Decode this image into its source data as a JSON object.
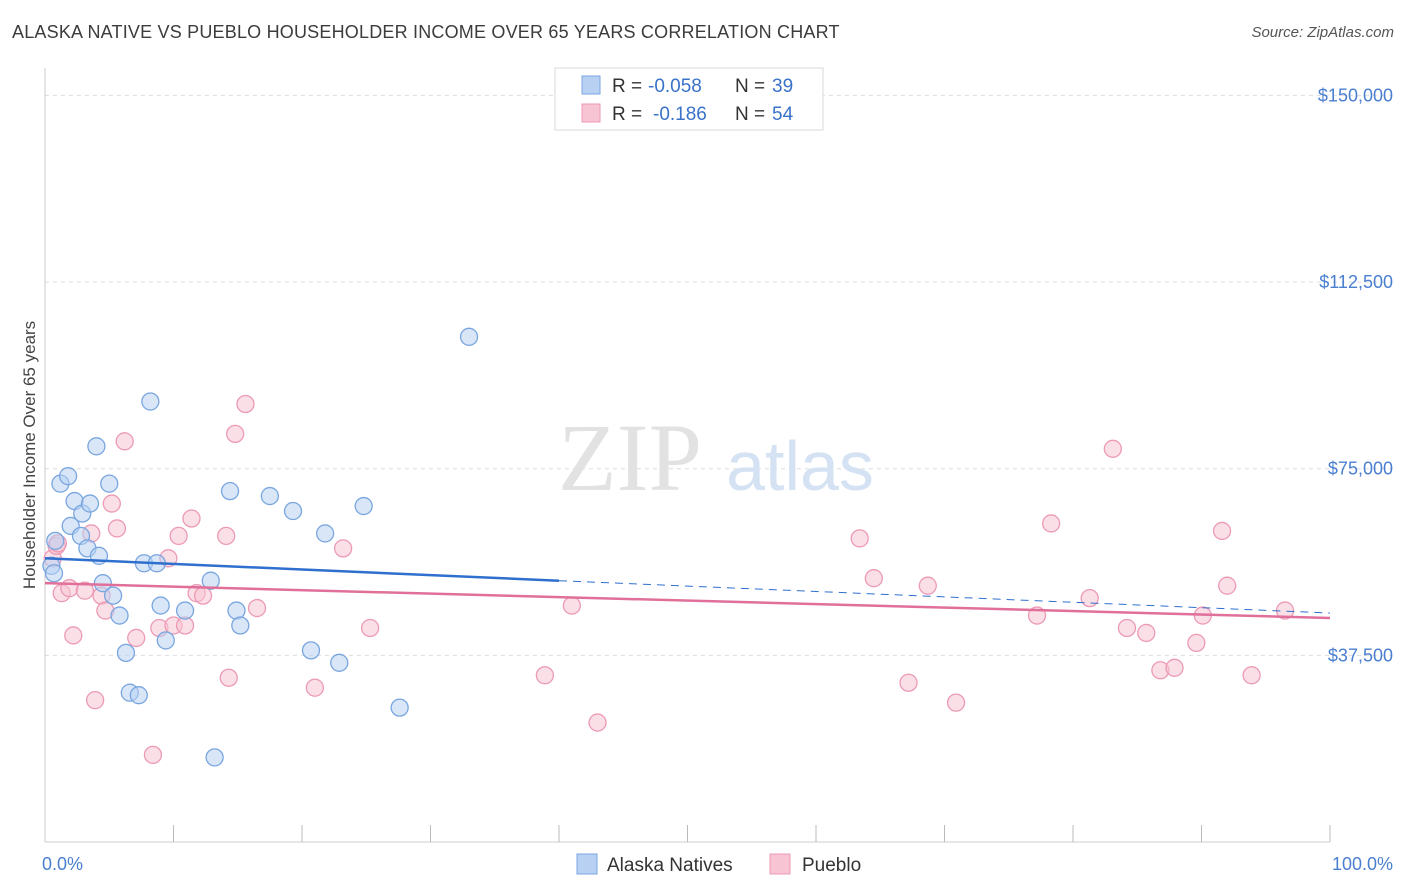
{
  "header": {
    "title": "ALASKA NATIVE VS PUEBLO HOUSEHOLDER INCOME OVER 65 YEARS CORRELATION CHART",
    "source": "Source: ZipAtlas.com"
  },
  "watermark": {
    "part1": "ZIP",
    "part2": "atlas"
  },
  "colors": {
    "alaska_fill": "#b8d1f3",
    "alaska_stroke": "#7aa6e0",
    "alaska_line": "#2f6fce",
    "pueblo_fill": "#f7c4d4",
    "pueblo_stroke": "#ec9ab5",
    "pueblo_line": "#e0709a",
    "grid": "#dddddd",
    "tick_text": "#4a7fd0"
  },
  "legend": {
    "rows": [
      {
        "r_label": "R =",
        "r_value": "-0.058",
        "n_label": "N =",
        "n_value": "39"
      },
      {
        "r_label": "R =",
        "r_value": "-0.186",
        "n_label": "N =",
        "n_value": "54"
      }
    ]
  },
  "chart_data": {
    "type": "scatter",
    "title": "ALASKA NATIVE VS PUEBLO HOUSEHOLDER INCOME OVER 65 YEARS CORRELATION CHART",
    "xlabel": "",
    "ylabel": "Householder Income Over 65 years",
    "xlim": [
      0,
      100
    ],
    "ylim": [
      0,
      150000
    ],
    "x_tick_labels": [
      "0.0%",
      "100.0%"
    ],
    "y_ticks": [
      37500,
      75000,
      112500,
      150000
    ],
    "y_tick_labels": [
      "$37,500",
      "$75,000",
      "$112,500",
      "$150,000"
    ],
    "grid": true,
    "legend_position": "top-center",
    "series": [
      {
        "name": "Alaska Natives",
        "r": -0.058,
        "n": 39,
        "trend": {
          "x0": 0,
          "y0": 57000,
          "x1": 40,
          "y1": 52500,
          "dash_to_x": 100,
          "dash_to_y": 46000
        },
        "points": [
          [
            0.5,
            55500
          ],
          [
            0.7,
            54000
          ],
          [
            0.8,
            60500
          ],
          [
            1.2,
            72000
          ],
          [
            1.8,
            73500
          ],
          [
            2.0,
            63500
          ],
          [
            2.3,
            68500
          ],
          [
            2.8,
            61500
          ],
          [
            2.9,
            66000
          ],
          [
            3.3,
            59000
          ],
          [
            3.5,
            68000
          ],
          [
            4.0,
            79500
          ],
          [
            4.2,
            57500
          ],
          [
            4.5,
            52000
          ],
          [
            5.0,
            72000
          ],
          [
            5.3,
            49500
          ],
          [
            5.8,
            45500
          ],
          [
            6.3,
            38000
          ],
          [
            6.6,
            30000
          ],
          [
            7.3,
            29500
          ],
          [
            7.7,
            56000
          ],
          [
            8.2,
            88500
          ],
          [
            8.7,
            56000
          ],
          [
            9.0,
            47500
          ],
          [
            9.4,
            40500
          ],
          [
            10.9,
            46500
          ],
          [
            12.9,
            52500
          ],
          [
            13.2,
            17000
          ],
          [
            14.4,
            70500
          ],
          [
            14.9,
            46500
          ],
          [
            15.2,
            43500
          ],
          [
            17.5,
            69500
          ],
          [
            19.3,
            66500
          ],
          [
            20.7,
            38500
          ],
          [
            21.8,
            62000
          ],
          [
            22.9,
            36000
          ],
          [
            24.8,
            67500
          ],
          [
            27.6,
            27000
          ],
          [
            33.0,
            101500
          ]
        ]
      },
      {
        "name": "Pueblo",
        "r": -0.186,
        "n": 54,
        "trend": {
          "x0": 0,
          "y0": 52000,
          "x1": 100,
          "y1": 45000
        },
        "points": [
          [
            0.6,
            57000
          ],
          [
            0.9,
            59500
          ],
          [
            1.0,
            60000
          ],
          [
            1.3,
            50000
          ],
          [
            1.9,
            51000
          ],
          [
            2.2,
            41500
          ],
          [
            3.1,
            50500
          ],
          [
            3.6,
            62000
          ],
          [
            3.9,
            28500
          ],
          [
            4.4,
            49500
          ],
          [
            4.7,
            46500
          ],
          [
            5.2,
            68000
          ],
          [
            5.6,
            63000
          ],
          [
            6.2,
            80500
          ],
          [
            7.1,
            41000
          ],
          [
            8.4,
            17500
          ],
          [
            8.9,
            43000
          ],
          [
            9.6,
            57000
          ],
          [
            10.0,
            43500
          ],
          [
            10.4,
            61500
          ],
          [
            10.9,
            43500
          ],
          [
            11.4,
            65000
          ],
          [
            11.8,
            50000
          ],
          [
            12.3,
            49500
          ],
          [
            14.1,
            61500
          ],
          [
            14.3,
            33000
          ],
          [
            14.8,
            82000
          ],
          [
            15.6,
            88000
          ],
          [
            16.5,
            47000
          ],
          [
            21.0,
            31000
          ],
          [
            23.2,
            59000
          ],
          [
            25.3,
            43000
          ],
          [
            38.9,
            33500
          ],
          [
            41.0,
            47500
          ],
          [
            43.0,
            24000
          ],
          [
            63.4,
            61000
          ],
          [
            64.5,
            53000
          ],
          [
            67.2,
            32000
          ],
          [
            68.7,
            51500
          ],
          [
            70.9,
            28000
          ],
          [
            77.2,
            45500
          ],
          [
            78.3,
            64000
          ],
          [
            81.3,
            49000
          ],
          [
            83.1,
            79000
          ],
          [
            84.2,
            43000
          ],
          [
            85.7,
            42000
          ],
          [
            86.8,
            34500
          ],
          [
            87.9,
            35000
          ],
          [
            89.6,
            40000
          ],
          [
            90.1,
            45500
          ],
          [
            91.6,
            62500
          ],
          [
            92.0,
            51500
          ],
          [
            93.9,
            33500
          ],
          [
            96.5,
            46500
          ]
        ]
      }
    ]
  }
}
